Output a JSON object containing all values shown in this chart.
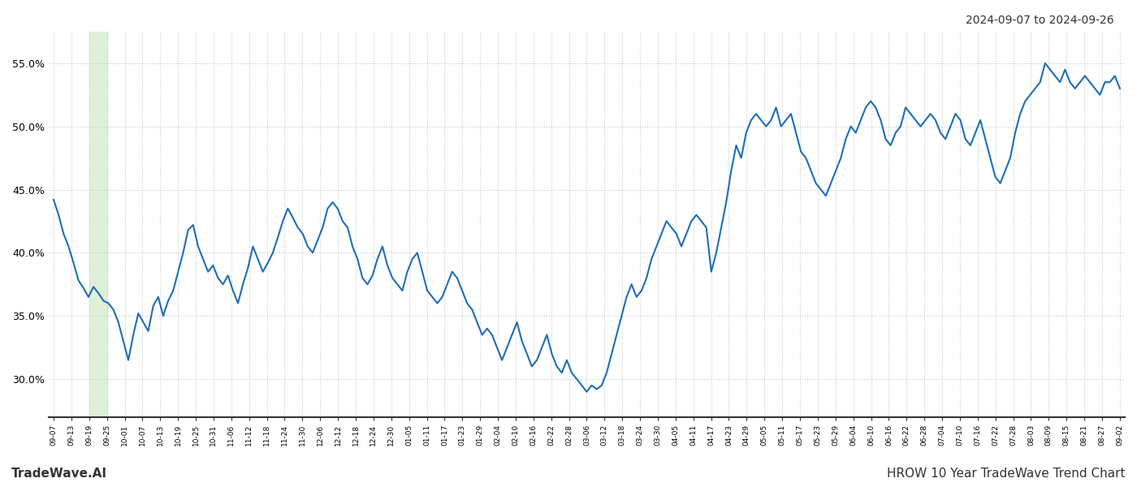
{
  "title_date_range": "2024-09-07 to 2024-09-26",
  "footer_left": "TradeWave.AI",
  "footer_right": "HROW 10 Year TradeWave Trend Chart",
  "line_color": "#1f6eb5",
  "line_width": 1.5,
  "bg_color": "#ffffff",
  "grid_color": "#c8c8c8",
  "axis_color": "#333333",
  "highlight_bg": "#dff0d8",
  "highlight_x_start_label": "09-19",
  "highlight_x_end_label": "09-25",
  "ylim": [
    27,
    57.5
  ],
  "yticks": [
    30.0,
    35.0,
    40.0,
    45.0,
    50.0,
    55.0
  ],
  "x_labels": [
    "09-07",
    "09-13",
    "09-19",
    "09-25",
    "10-01",
    "10-07",
    "10-13",
    "10-19",
    "10-25",
    "10-31",
    "11-06",
    "11-12",
    "11-18",
    "11-24",
    "11-30",
    "12-06",
    "12-12",
    "12-18",
    "12-24",
    "12-30",
    "01-05",
    "01-11",
    "01-17",
    "01-23",
    "01-29",
    "02-04",
    "02-10",
    "02-16",
    "02-22",
    "02-28",
    "03-06",
    "03-12",
    "03-18",
    "03-24",
    "03-30",
    "04-05",
    "04-11",
    "04-17",
    "04-23",
    "04-29",
    "05-05",
    "05-11",
    "05-17",
    "05-23",
    "05-29",
    "06-04",
    "06-10",
    "06-16",
    "06-22",
    "06-28",
    "07-04",
    "07-10",
    "07-16",
    "07-22",
    "07-28",
    "08-03",
    "08-09",
    "08-15",
    "08-21",
    "08-27",
    "09-02"
  ],
  "values": [
    44.2,
    43.0,
    41.5,
    40.5,
    39.2,
    37.8,
    37.2,
    36.5,
    37.3,
    36.8,
    36.2,
    36.0,
    35.5,
    34.5,
    33.0,
    31.5,
    33.5,
    35.2,
    34.5,
    33.8,
    35.8,
    36.5,
    35.0,
    36.2,
    37.0,
    38.5,
    40.0,
    41.8,
    42.2,
    40.5,
    39.5,
    38.5,
    39.0,
    38.0,
    37.5,
    38.2,
    37.0,
    36.0,
    37.5,
    38.8,
    40.5,
    39.5,
    38.5,
    39.2,
    40.0,
    41.2,
    42.5,
    43.5,
    42.8,
    42.0,
    41.5,
    40.5,
    40.0,
    41.0,
    42.0,
    43.5,
    44.0,
    43.5,
    42.5,
    42.0,
    40.5,
    39.5,
    38.0,
    37.5,
    38.2,
    39.5,
    40.5,
    39.0,
    38.0,
    37.5,
    37.0,
    38.5,
    39.5,
    40.0,
    38.5,
    37.0,
    36.5,
    36.0,
    36.5,
    37.5,
    38.5,
    38.0,
    37.0,
    36.0,
    35.5,
    34.5,
    33.5,
    34.0,
    33.5,
    32.5,
    31.5,
    32.5,
    33.5,
    34.5,
    33.0,
    32.0,
    31.0,
    31.5,
    32.5,
    33.5,
    32.0,
    31.0,
    30.5,
    31.5,
    30.5,
    30.0,
    29.5,
    29.0,
    29.5,
    29.2,
    29.5,
    30.5,
    32.0,
    33.5,
    35.0,
    36.5,
    37.5,
    36.5,
    37.0,
    38.0,
    39.5,
    40.5,
    41.5,
    42.5,
    42.0,
    41.5,
    40.5,
    41.5,
    42.5,
    43.0,
    42.5,
    42.0,
    38.5,
    40.0,
    42.0,
    44.0,
    46.5,
    48.5,
    47.5,
    49.5,
    50.5,
    51.0,
    50.5,
    50.0,
    50.5,
    51.5,
    50.0,
    50.5,
    51.0,
    49.5,
    48.0,
    47.5,
    46.5,
    45.5,
    45.0,
    44.5,
    45.5,
    46.5,
    47.5,
    49.0,
    50.0,
    49.5,
    50.5,
    51.5,
    52.0,
    51.5,
    50.5,
    49.0,
    48.5,
    49.5,
    50.0,
    51.5,
    51.0,
    50.5,
    50.0,
    50.5,
    51.0,
    50.5,
    49.5,
    49.0,
    50.0,
    51.0,
    50.5,
    49.0,
    48.5,
    49.5,
    50.5,
    49.0,
    47.5,
    46.0,
    45.5,
    46.5,
    47.5,
    49.5,
    51.0,
    52.0,
    52.5,
    53.0,
    53.5,
    55.0,
    54.5,
    54.0,
    53.5,
    54.5,
    53.5,
    53.0,
    53.5,
    54.0,
    53.5,
    53.0,
    52.5,
    53.5,
    53.5,
    54.0,
    53.0
  ]
}
